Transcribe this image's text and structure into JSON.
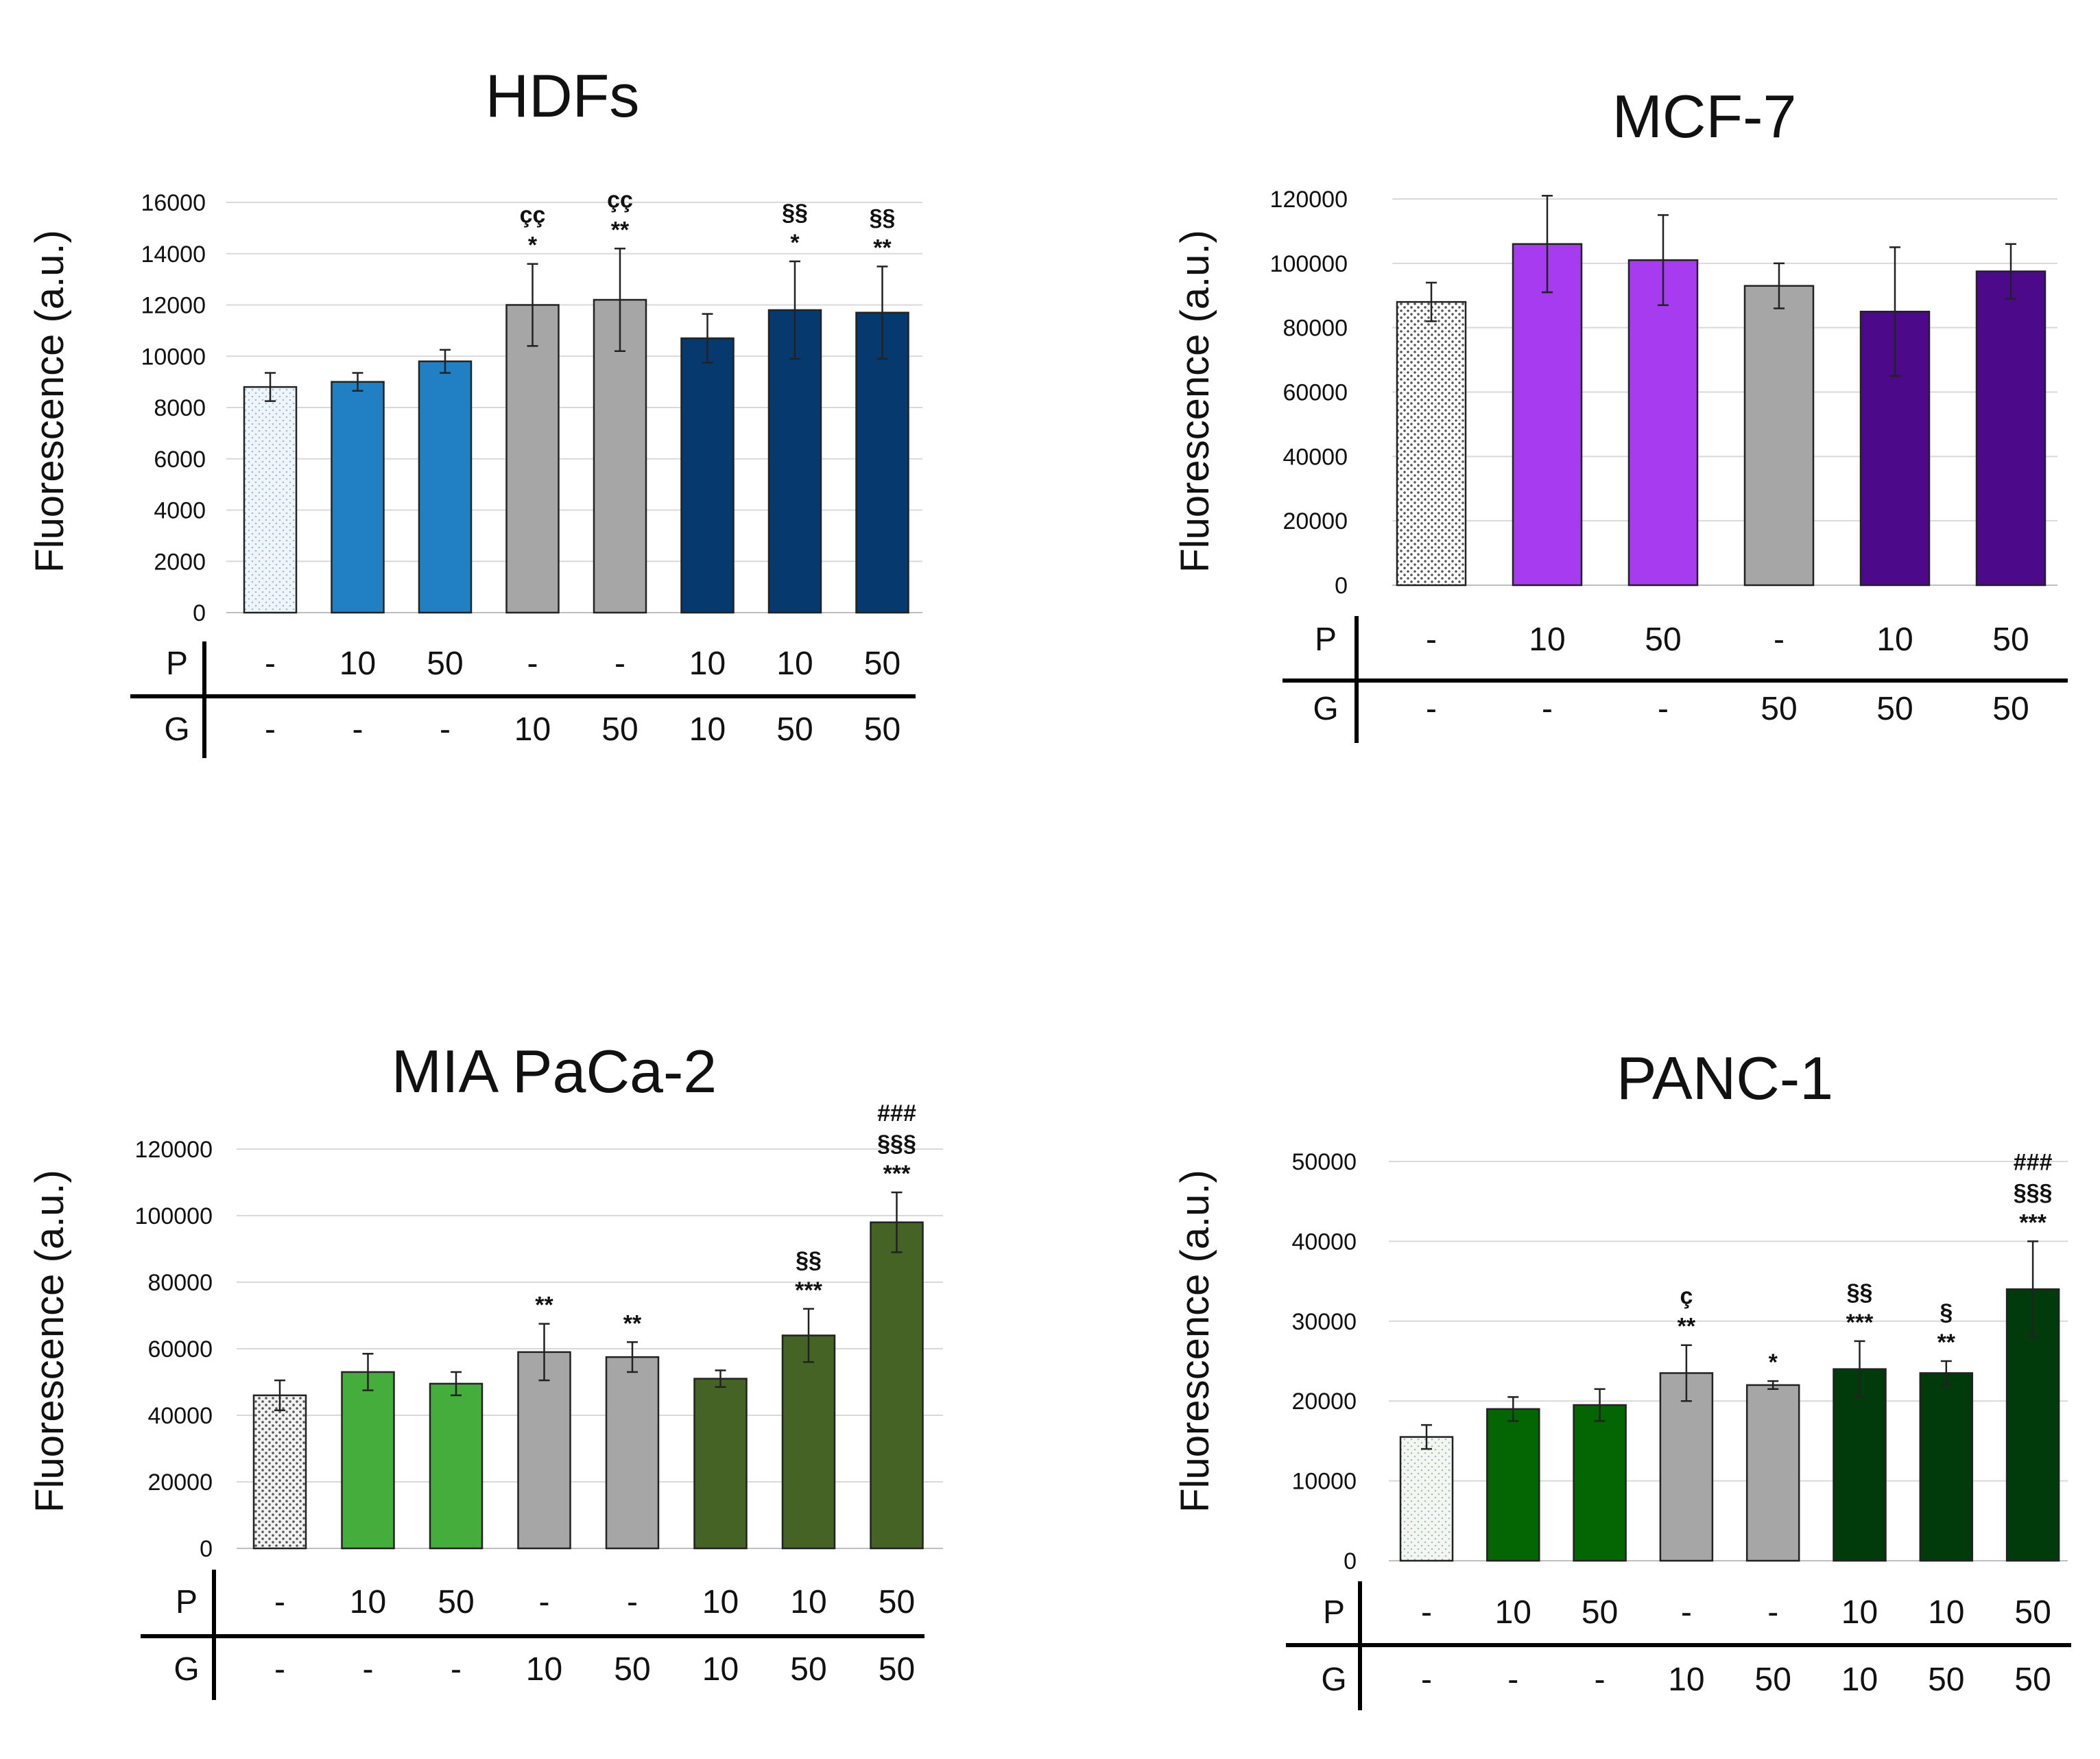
{
  "chart_data": [
    {
      "type": "bar",
      "title": "HDFs",
      "xlabel": "",
      "ylabel": "Fluorescence (a.u.)",
      "ylim": [
        0,
        16000
      ],
      "yticks": [
        0,
        2000,
        4000,
        6000,
        8000,
        10000,
        12000,
        14000,
        16000
      ],
      "grid": true,
      "row_labels": [
        "P",
        "G"
      ],
      "p_row": [
        "-",
        "10",
        "50",
        "-",
        "-",
        "10",
        "10",
        "50"
      ],
      "g_row": [
        "-",
        "-",
        "-",
        "10",
        "50",
        "10",
        "50",
        "50"
      ],
      "values": [
        8800,
        9000,
        9800,
        12000,
        12200,
        10700,
        11800,
        11700
      ],
      "errors": [
        550,
        350,
        450,
        1600,
        2000,
        950,
        1900,
        1800
      ],
      "colors": [
        "#eef5fb",
        "#2180c4",
        "#2180c4",
        "#a6a6a6",
        "#a6a6a6",
        "#063a6e",
        "#063a6e",
        "#063a6e"
      ],
      "dotted": [
        true,
        false,
        false,
        false,
        false,
        false,
        false,
        false
      ],
      "annotations": [
        [],
        [],
        [],
        [
          "çç",
          "*"
        ],
        [
          "çç",
          "**"
        ],
        [],
        [
          "§§",
          "*"
        ],
        [
          "§§",
          "**"
        ]
      ]
    },
    {
      "type": "bar",
      "title": "MCF-7",
      "xlabel": "",
      "ylabel": "Fluorescence (a.u.)",
      "ylim": [
        0,
        120000
      ],
      "yticks": [
        0,
        20000,
        40000,
        60000,
        80000,
        100000,
        120000
      ],
      "grid": true,
      "row_labels": [
        "P",
        "G"
      ],
      "p_row": [
        "-",
        "10",
        "50",
        "-",
        "10",
        "50"
      ],
      "g_row": [
        "-",
        "-",
        "-",
        "50",
        "50",
        "50"
      ],
      "values": [
        88000,
        106000,
        101000,
        93000,
        85000,
        97500
      ],
      "errors": [
        6000,
        15000,
        14000,
        7000,
        20000,
        8500
      ],
      "colors": [
        "#ffffff",
        "#a63bf0",
        "#a63bf0",
        "#a6a6a6",
        "#4c0a8a",
        "#4c0a8a"
      ],
      "dotted": [
        true,
        false,
        false,
        false,
        false,
        false
      ],
      "annotations": [
        [],
        [],
        [],
        [],
        [],
        []
      ]
    },
    {
      "type": "bar",
      "title": "MIA PaCa-2",
      "xlabel": "",
      "ylabel": "Fluorescence (a.u.)",
      "ylim": [
        0,
        120000
      ],
      "yticks": [
        0,
        20000,
        40000,
        60000,
        80000,
        100000,
        120000
      ],
      "grid": true,
      "row_labels": [
        "P",
        "G"
      ],
      "p_row": [
        "-",
        "10",
        "50",
        "-",
        "-",
        "10",
        "10",
        "50"
      ],
      "g_row": [
        "-",
        "-",
        "-",
        "10",
        "50",
        "10",
        "50",
        "50"
      ],
      "values": [
        46000,
        53000,
        49500,
        59000,
        57500,
        51000,
        64000,
        98000
      ],
      "errors": [
        4500,
        5500,
        3500,
        8500,
        4500,
        2500,
        8000,
        9000
      ],
      "colors": [
        "#f2f2f2",
        "#44ad3c",
        "#44ad3c",
        "#a6a6a6",
        "#a6a6a6",
        "#456324",
        "#456324",
        "#456324"
      ],
      "dotted": [
        true,
        false,
        false,
        false,
        false,
        false,
        false,
        false
      ],
      "annotations": [
        [],
        [],
        [],
        [
          "**"
        ],
        [
          "**"
        ],
        [],
        [
          "§§",
          "***"
        ],
        [
          "###",
          "§§§",
          "***"
        ]
      ]
    },
    {
      "type": "bar",
      "title": "PANC-1",
      "xlabel": "",
      "ylabel": "Fluorescence (a.u.)",
      "ylim": [
        0,
        50000
      ],
      "yticks": [
        0,
        10000,
        20000,
        30000,
        40000,
        50000
      ],
      "grid": true,
      "row_labels": [
        "P",
        "G"
      ],
      "p_row": [
        "-",
        "10",
        "50",
        "-",
        "-",
        "10",
        "10",
        "50"
      ],
      "g_row": [
        "-",
        "-",
        "-",
        "10",
        "50",
        "10",
        "50",
        "50"
      ],
      "values": [
        15500,
        19000,
        19500,
        23500,
        22000,
        24000,
        23500,
        34000
      ],
      "errors": [
        1500,
        1500,
        2000,
        3500,
        500,
        3500,
        1500,
        6000
      ],
      "colors": [
        "#f3f7ef",
        "#036602",
        "#036602",
        "#a6a6a6",
        "#a6a6a6",
        "#013a0b",
        "#013a0b",
        "#013a0b"
      ],
      "dotted": [
        true,
        false,
        false,
        false,
        false,
        false,
        false,
        false
      ],
      "annotations": [
        [],
        [],
        [],
        [
          "ç",
          "**"
        ],
        [
          "*"
        ],
        [
          "§§",
          "***"
        ],
        [
          "§",
          "**"
        ],
        [
          "###",
          "§§§",
          "***"
        ]
      ]
    }
  ]
}
